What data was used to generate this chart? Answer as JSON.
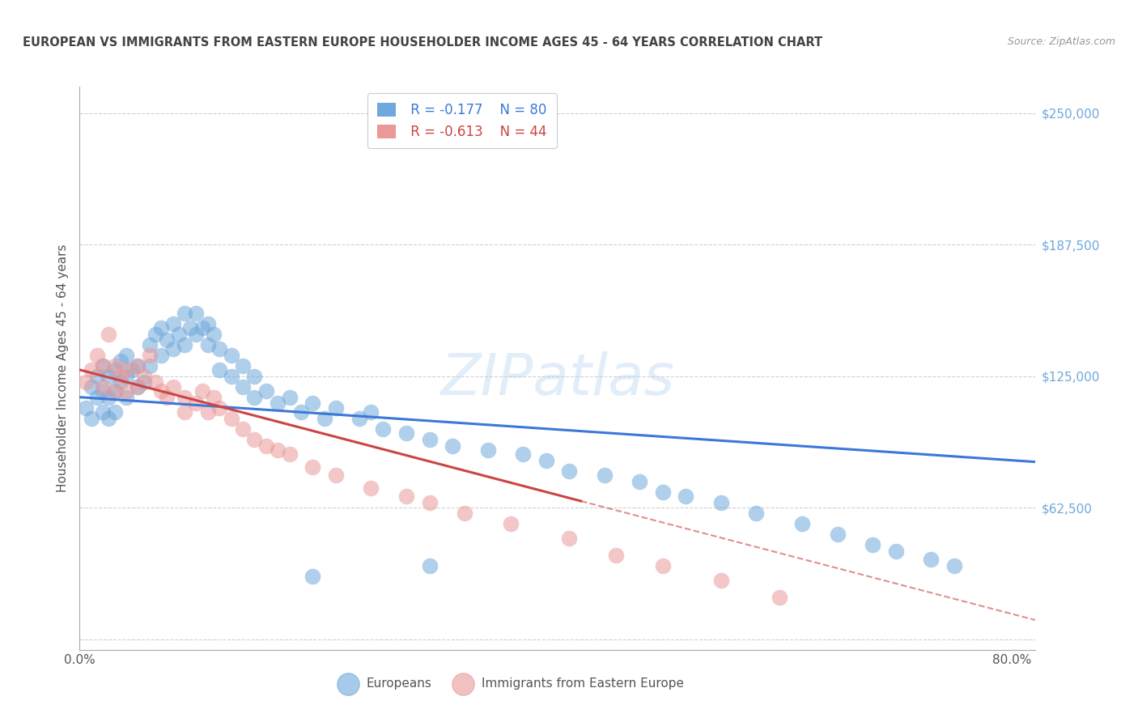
{
  "title": "EUROPEAN VS IMMIGRANTS FROM EASTERN EUROPE HOUSEHOLDER INCOME AGES 45 - 64 YEARS CORRELATION CHART",
  "source": "Source: ZipAtlas.com",
  "ylabel": "Householder Income Ages 45 - 64 years",
  "xlim": [
    0.0,
    0.82
  ],
  "ylim": [
    -5000,
    262500
  ],
  "yticks": [
    0,
    62500,
    125000,
    187500,
    250000
  ],
  "ytick_labels": [
    "",
    "$62,500",
    "$125,000",
    "$187,500",
    "$250,000"
  ],
  "xticks": [
    0.0,
    0.1,
    0.2,
    0.3,
    0.4,
    0.5,
    0.6,
    0.7,
    0.8
  ],
  "legend_r1": "R = -0.177",
  "legend_n1": "N = 80",
  "legend_r2": "R = -0.613",
  "legend_n2": "N = 44",
  "color_blue": "#6fa8dc",
  "color_pink": "#ea9999",
  "color_blue_line": "#3c78d8",
  "color_pink_line": "#cc4444",
  "title_color": "#434343",
  "source_color": "#999999",
  "axis_label_color": "#555555",
  "tick_color_right": "#6fa8dc",
  "background_color": "#ffffff",
  "grid_color": "#cccccc",
  "euro_intercept": 115000,
  "euro_slope": -37500,
  "immig_intercept": 128000,
  "immig_slope": -145000,
  "europeans_x": [
    0.005,
    0.01,
    0.01,
    0.015,
    0.015,
    0.02,
    0.02,
    0.02,
    0.025,
    0.025,
    0.025,
    0.03,
    0.03,
    0.03,
    0.035,
    0.035,
    0.04,
    0.04,
    0.04,
    0.045,
    0.05,
    0.05,
    0.055,
    0.06,
    0.06,
    0.065,
    0.07,
    0.07,
    0.075,
    0.08,
    0.08,
    0.085,
    0.09,
    0.09,
    0.095,
    0.1,
    0.1,
    0.105,
    0.11,
    0.11,
    0.115,
    0.12,
    0.12,
    0.13,
    0.13,
    0.14,
    0.14,
    0.15,
    0.15,
    0.16,
    0.17,
    0.18,
    0.19,
    0.2,
    0.21,
    0.22,
    0.24,
    0.25,
    0.26,
    0.28,
    0.3,
    0.32,
    0.35,
    0.38,
    0.4,
    0.42,
    0.45,
    0.48,
    0.5,
    0.52,
    0.55,
    0.58,
    0.62,
    0.65,
    0.68,
    0.7,
    0.73,
    0.75,
    0.3,
    0.2
  ],
  "europeans_y": [
    110000,
    105000,
    120000,
    125000,
    115000,
    130000,
    118000,
    108000,
    125000,
    115000,
    105000,
    128000,
    118000,
    108000,
    132000,
    122000,
    135000,
    125000,
    115000,
    128000,
    130000,
    120000,
    122000,
    140000,
    130000,
    145000,
    148000,
    135000,
    142000,
    150000,
    138000,
    145000,
    155000,
    140000,
    148000,
    155000,
    145000,
    148000,
    150000,
    140000,
    145000,
    138000,
    128000,
    135000,
    125000,
    130000,
    120000,
    125000,
    115000,
    118000,
    112000,
    115000,
    108000,
    112000,
    105000,
    110000,
    105000,
    108000,
    100000,
    98000,
    95000,
    92000,
    90000,
    88000,
    85000,
    80000,
    78000,
    75000,
    70000,
    68000,
    65000,
    60000,
    55000,
    50000,
    45000,
    42000,
    38000,
    35000,
    35000,
    30000
  ],
  "immigrants_x": [
    0.005,
    0.01,
    0.015,
    0.02,
    0.02,
    0.025,
    0.03,
    0.03,
    0.035,
    0.04,
    0.04,
    0.05,
    0.05,
    0.055,
    0.06,
    0.065,
    0.07,
    0.075,
    0.08,
    0.09,
    0.09,
    0.1,
    0.105,
    0.11,
    0.115,
    0.12,
    0.13,
    0.14,
    0.15,
    0.16,
    0.17,
    0.18,
    0.2,
    0.22,
    0.25,
    0.28,
    0.3,
    0.33,
    0.37,
    0.42,
    0.46,
    0.5,
    0.55,
    0.6
  ],
  "immigrants_y": [
    122000,
    128000,
    135000,
    130000,
    120000,
    145000,
    130000,
    118000,
    125000,
    128000,
    118000,
    130000,
    120000,
    125000,
    135000,
    122000,
    118000,
    115000,
    120000,
    115000,
    108000,
    112000,
    118000,
    108000,
    115000,
    110000,
    105000,
    100000,
    95000,
    92000,
    90000,
    88000,
    82000,
    78000,
    72000,
    68000,
    65000,
    60000,
    55000,
    48000,
    40000,
    35000,
    28000,
    20000
  ]
}
